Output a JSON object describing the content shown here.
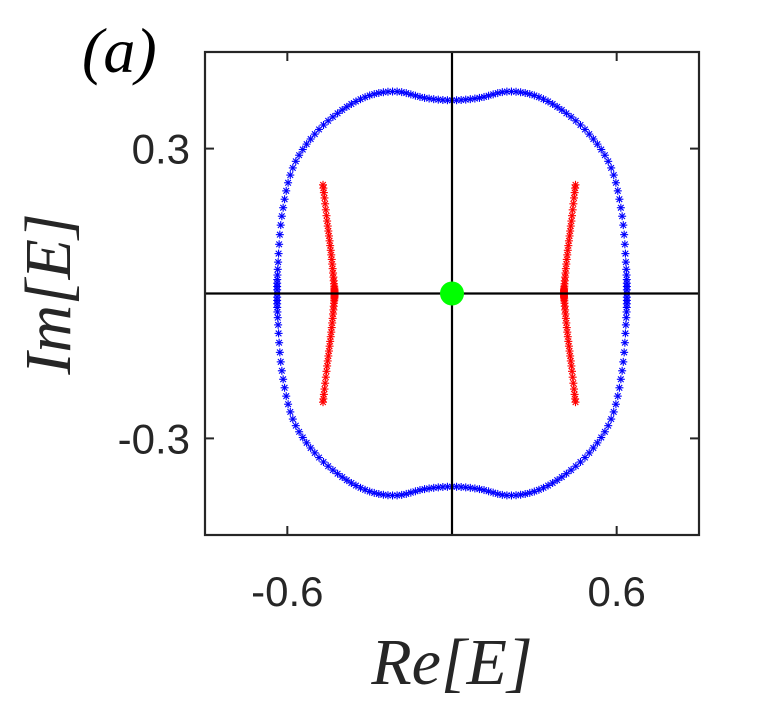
{
  "chart_data": {
    "type": "scatter",
    "panel_label": "(a)",
    "xlabel": "Re[E]",
    "ylabel": "Im[E]",
    "xlim": [
      -0.9,
      0.9
    ],
    "ylim": [
      -0.5,
      0.5
    ],
    "xticks": [
      -0.6,
      0.6
    ],
    "yticks": [
      -0.3,
      0.3
    ],
    "xtick_labels": [
      "-0.6",
      "0.6"
    ],
    "ytick_labels": [
      "-0.3",
      "0.3"
    ],
    "grid": false,
    "zero_lines": true,
    "series": [
      {
        "marker": "asterisk",
        "color": "#0000ff",
        "closed": true,
        "points": [
          [
            0.0,
            0.4
          ],
          [
            0.1,
            0.405
          ],
          [
            0.2,
            0.418
          ],
          [
            0.3,
            0.41
          ],
          [
            0.4,
            0.38
          ],
          [
            0.5,
            0.33
          ],
          [
            0.58,
            0.26
          ],
          [
            0.62,
            0.16
          ],
          [
            0.635,
            0.05
          ],
          [
            0.637,
            0.0
          ],
          [
            0.635,
            -0.05
          ],
          [
            0.62,
            -0.16
          ],
          [
            0.58,
            -0.26
          ],
          [
            0.5,
            -0.33
          ],
          [
            0.4,
            -0.38
          ],
          [
            0.3,
            -0.41
          ],
          [
            0.2,
            -0.418
          ],
          [
            0.1,
            -0.405
          ],
          [
            0.0,
            -0.4
          ],
          [
            -0.1,
            -0.405
          ],
          [
            -0.2,
            -0.418
          ],
          [
            -0.3,
            -0.41
          ],
          [
            -0.4,
            -0.38
          ],
          [
            -0.5,
            -0.33
          ],
          [
            -0.58,
            -0.26
          ],
          [
            -0.62,
            -0.16
          ],
          [
            -0.635,
            -0.05
          ],
          [
            -0.637,
            0.0
          ],
          [
            -0.635,
            0.05
          ],
          [
            -0.62,
            0.16
          ],
          [
            -0.58,
            0.26
          ],
          [
            -0.5,
            0.33
          ],
          [
            -0.4,
            0.38
          ],
          [
            -0.3,
            0.41
          ],
          [
            -0.2,
            0.418
          ],
          [
            -0.1,
            0.405
          ]
        ]
      },
      {
        "marker": "asterisk",
        "color": "#ff0000",
        "closed": false,
        "points": [
          [
            0.45,
            0.225
          ],
          [
            0.435,
            0.15
          ],
          [
            0.42,
            0.08
          ],
          [
            0.41,
            0.02
          ],
          [
            0.408,
            0.0
          ],
          [
            0.41,
            -0.02
          ],
          [
            0.42,
            -0.08
          ],
          [
            0.435,
            -0.15
          ],
          [
            0.45,
            -0.225
          ]
        ]
      },
      {
        "marker": "asterisk",
        "color": "#ff0000",
        "closed": false,
        "points": [
          [
            -0.47,
            0.225
          ],
          [
            -0.455,
            0.15
          ],
          [
            -0.44,
            0.08
          ],
          [
            -0.43,
            0.02
          ],
          [
            -0.428,
            0.0
          ],
          [
            -0.43,
            -0.02
          ],
          [
            -0.44,
            -0.08
          ],
          [
            -0.455,
            -0.15
          ],
          [
            -0.47,
            -0.225
          ]
        ]
      },
      {
        "marker": "dot",
        "color": "#00ff00",
        "closed": false,
        "points": [
          [
            0.0,
            0.0
          ]
        ]
      }
    ]
  }
}
